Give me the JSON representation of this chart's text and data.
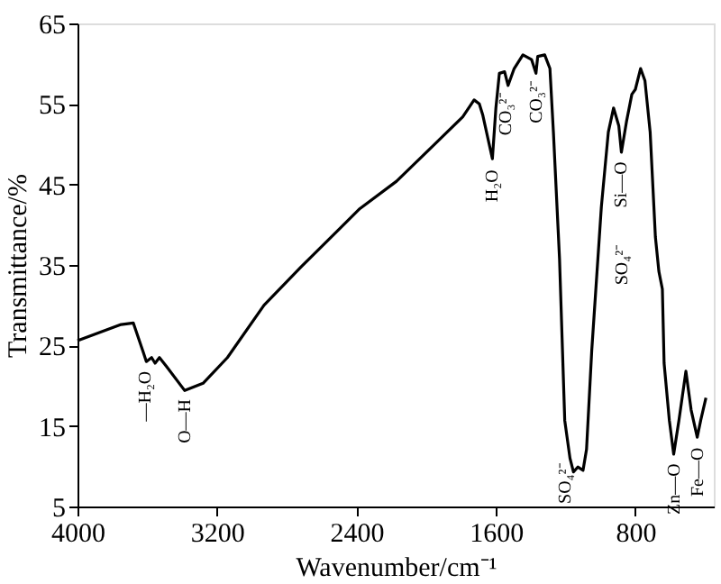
{
  "chart_data": {
    "type": "line",
    "xlabel": "Wavenumber/cm⁻¹",
    "ylabel": "Transmittance/%",
    "x": [
      4000,
      3750,
      3680,
      3625,
      3605,
      3575,
      3555,
      3530,
      3490,
      3385,
      3280,
      3140,
      2930,
      2720,
      2380,
      2170,
      1965,
      1790,
      1725,
      1695,
      1675,
      1620,
      1600,
      1580,
      1550,
      1530,
      1495,
      1445,
      1395,
      1370,
      1360,
      1320,
      1290,
      1270,
      1235,
      1205,
      1175,
      1155,
      1130,
      1100,
      1080,
      1050,
      995,
      955,
      925,
      895,
      880,
      850,
      820,
      800,
      770,
      745,
      715,
      685,
      665,
      645,
      635,
      605,
      580,
      550,
      510,
      480,
      445,
      425,
      395
    ],
    "series": [
      {
        "color": "#000000",
        "values": [
          25.6,
          27.6,
          27.8,
          24.3,
          23,
          23.5,
          22.8,
          23.5,
          22.4,
          19.4,
          20.3,
          23.5,
          30,
          34.7,
          42,
          45.4,
          49.7,
          53.4,
          55.5,
          55,
          53.6,
          48.2,
          54.5,
          58.8,
          59,
          57.3,
          59.4,
          61.1,
          60.5,
          58.8,
          60.9,
          61.1,
          59.4,
          51.5,
          35.8,
          15.7,
          11,
          9.3,
          9.9,
          9.5,
          12.1,
          24.4,
          42.2,
          51.5,
          54.5,
          52.3,
          49,
          52.9,
          56.2,
          56.8,
          59.4,
          57.9,
          51.5,
          38.5,
          34.2,
          32,
          22.8,
          15.7,
          11.5,
          15.7,
          21.8,
          17,
          13.6,
          15.7,
          18.5
        ]
      }
    ],
    "xlim": [
      4000,
      350
    ],
    "xticks": [
      4000,
      3200,
      2400,
      1600,
      800
    ],
    "ylim": [
      5,
      65
    ],
    "yticks": [
      5,
      15,
      25,
      35,
      45,
      55,
      65
    ],
    "grid": false,
    "annotations": [
      {
        "text": "—H₂O",
        "x": 3610,
        "y": 22.5
      },
      {
        "text": "O—H",
        "x": 3385,
        "y": 19
      },
      {
        "text": "H₂O",
        "x": 1620,
        "y": 47.5
      },
      {
        "text": "CO₃²⁻",
        "x": 1545,
        "y": 57
      },
      {
        "text": "CO₃²⁻",
        "x": 1370,
        "y": 58.5
      },
      {
        "text": "Si—O",
        "x": 880,
        "y": 48.5
      },
      "SO₄²⁻",
      {
        "text": "SO₄²⁻",
        "x": 1205,
        "y": 11
      },
      {
        "text": "Zn—O",
        "x": 580,
        "y": 11
      },
      {
        "text": "Fe—O",
        "x": 445,
        "y": 13
      }
    ]
  }
}
